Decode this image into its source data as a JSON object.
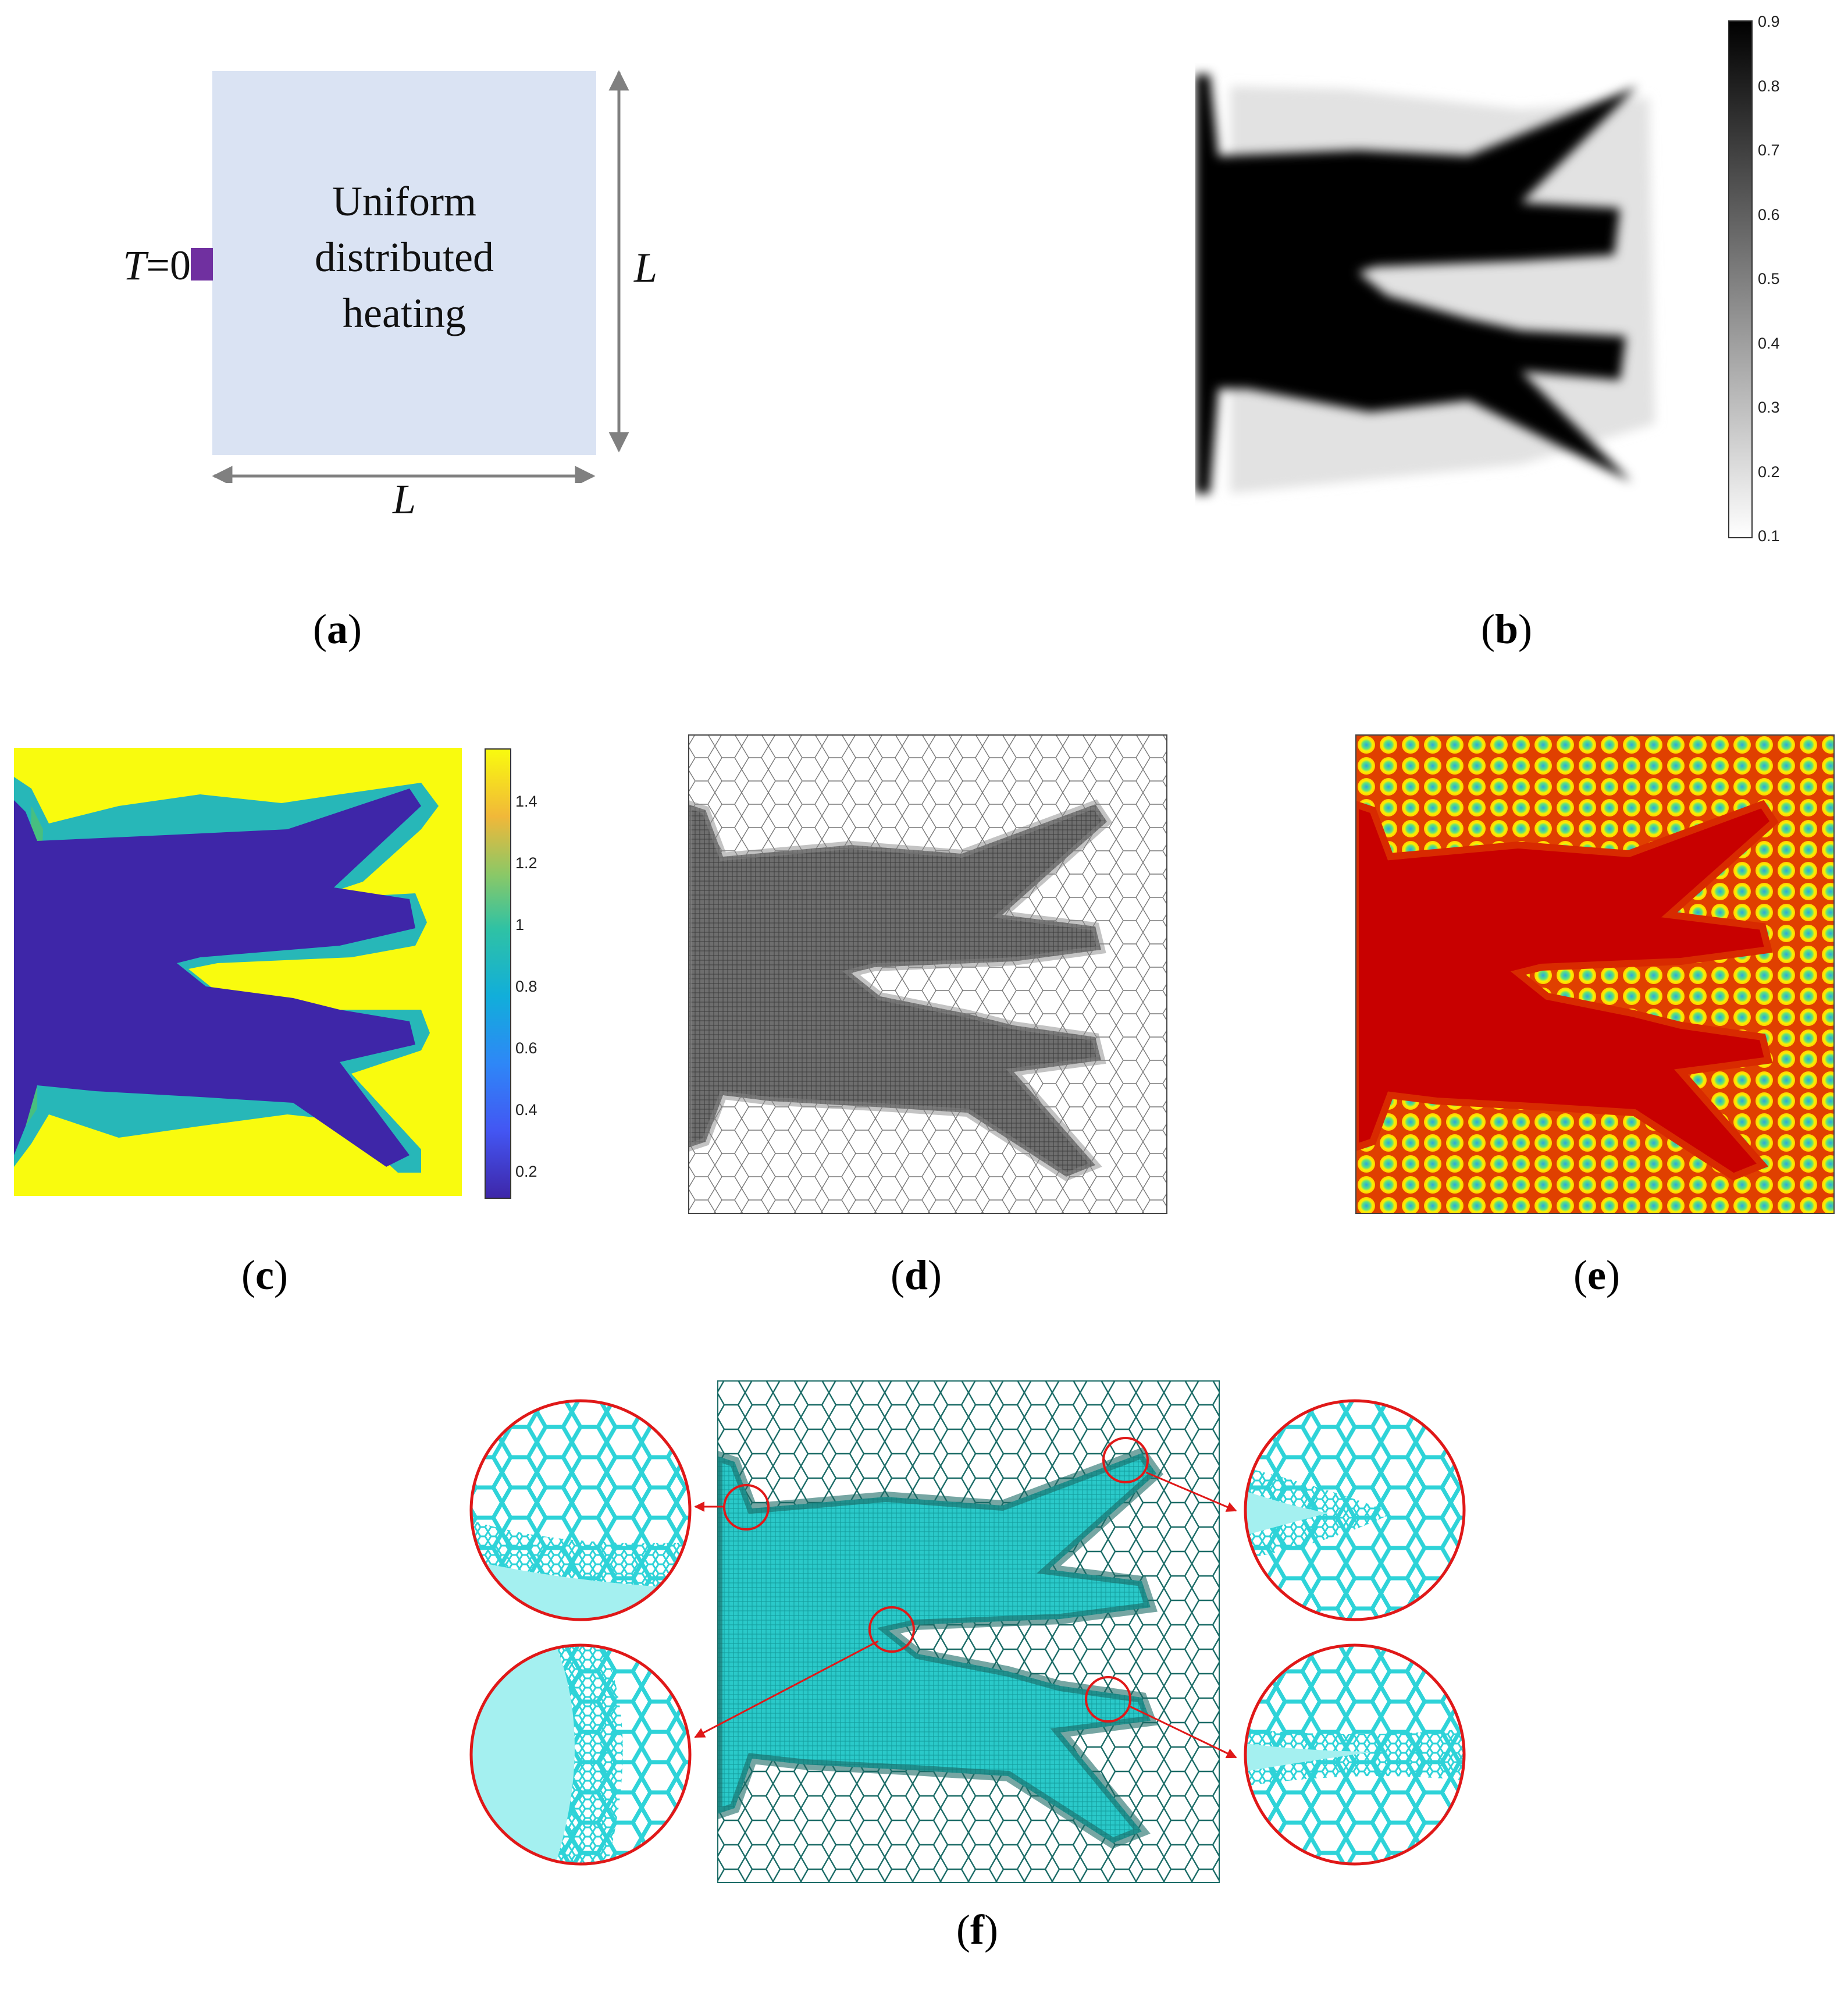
{
  "labels": {
    "a": "a",
    "b": "b",
    "c": "c",
    "d": "d",
    "e": "e",
    "f": "f"
  },
  "panel_a": {
    "body_lines": [
      "Uniform",
      "distributed",
      "heating"
    ],
    "boundary_label_T": "T",
    "boundary_label_rest": "=0",
    "width_label": "L",
    "height_label": "L",
    "colors": {
      "domain": "#dae3f3",
      "heat_sink": "#7030a0",
      "arrows": "#808080"
    }
  },
  "panel_b": {
    "colorbar_ticks": [
      "0.9",
      "0.8",
      "0.7",
      "0.6",
      "0.5",
      "0.4",
      "0.3",
      "0.2",
      "0.1"
    ],
    "colors": {
      "solid": "#000000",
      "void": "#ffffff"
    }
  },
  "panel_c": {
    "colorbar_ticks": [
      "1.4",
      "1.2",
      "1",
      "0.8",
      "0.6",
      "0.4",
      "0.2"
    ],
    "colors": {
      "low": "#3e26a8",
      "mid": "#1fa3c9",
      "high": "#f9fb0e",
      "mid2": "#4bc07a"
    }
  },
  "panel_d": {
    "colors": {
      "edges": "#555555",
      "background": "#ffffff"
    }
  },
  "panel_e": {
    "colors": {
      "field": "#c80000",
      "cell_edge": "#ffee00",
      "cell_core": "#2aa7e0"
    }
  },
  "panel_f": {
    "colors": {
      "mesh_edges": "#1a6b66",
      "mesh_fill": "#00cccc",
      "zoom_circle": "#e01818",
      "zoom_edges": "#2ed3d8"
    }
  }
}
